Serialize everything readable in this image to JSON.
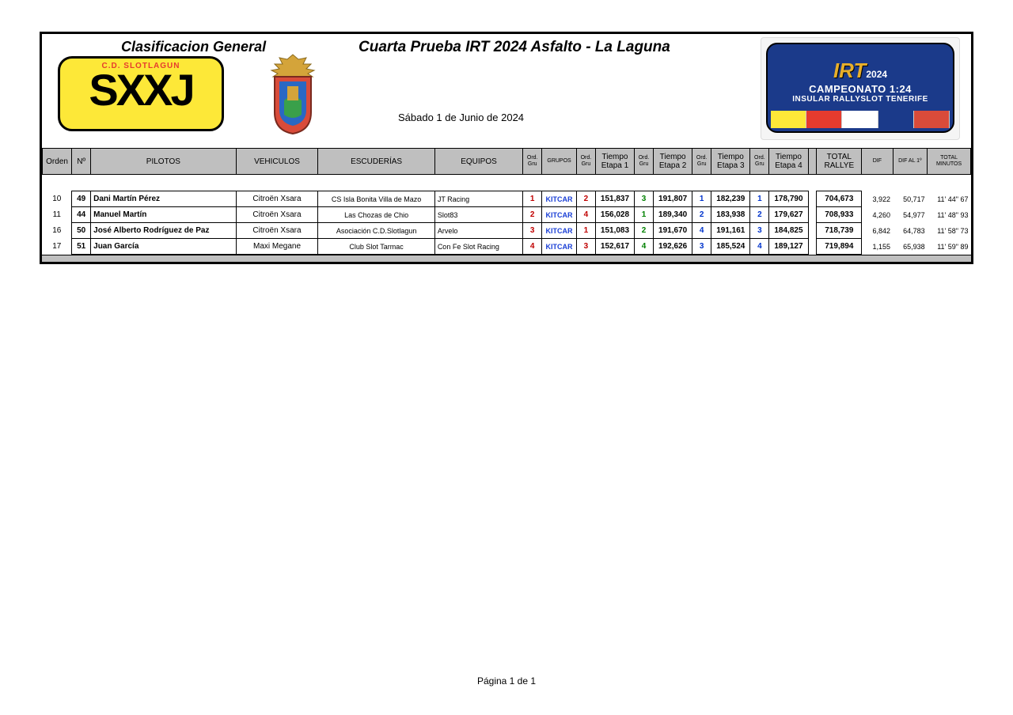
{
  "header": {
    "classification": "Clasificacion  General",
    "event_title": "Cuarta Prueba IRT 2024 Asfalto - La Laguna",
    "date": "Sábado 1 de Junio de 2024",
    "logo_sxxj_top": "C.D. SLOTLAGUN",
    "logo_sxxj_main": "SXXJ",
    "irt_brand": "IRT",
    "irt_year": "2024",
    "irt_line1": "CAMPEONATO 1:24",
    "irt_line2": "INSULAR RALLYSLOT TENERIFE"
  },
  "columns": {
    "orden": "Orden",
    "num": "Nº",
    "pilotos": "PILOTOS",
    "vehiculos": "VEHICULOS",
    "escuderias": "ESCUDERÍAS",
    "equipos": "EQUIPOS",
    "ordgru": "Ord. Gru",
    "grupos": "GRUPOS",
    "ordgru1": "Ord. Gru",
    "t1": "Tiempo Etapa 1",
    "ordgru2": "Ord. Gru",
    "t2": "Tiempo Etapa 2",
    "ordgru3": "Ord. Gru",
    "t3": "Tiempo Etapa 3",
    "ordgru4": "Ord. Gru",
    "t4": "Tiempo Etapa 4",
    "total": "TOTAL RALLYE",
    "dif": "DIF",
    "dif1": "DIF AL  1º",
    "min": "TOTAL MINUTOS"
  },
  "rows": [
    {
      "orden": "10",
      "num": "49",
      "piloto": "Dani Martín Pérez",
      "veh": "Citroën Xsara",
      "esc": "CS Isla Bonita Villa de Mazo",
      "eq": "JT Racing",
      "og": "1",
      "og_color": "red",
      "grupo": "KITCAR",
      "og1": "2",
      "og1c": "red",
      "t1": "151,837",
      "og2": "3",
      "og2c": "green",
      "t2": "191,807",
      "og3": "1",
      "og3c": "blue",
      "t3": "182,239",
      "og4": "1",
      "og4c": "blue",
      "t4": "178,790",
      "total": "704,673",
      "dif": "3,922",
      "dif1": "50,717",
      "min": "11' 44\" 67"
    },
    {
      "orden": "11",
      "num": "44",
      "piloto": "Manuel Martín",
      "veh": "Citroën Xsara",
      "esc": "Las Chozas de Chio",
      "eq": "Slot83",
      "og": "2",
      "og_color": "red",
      "grupo": "KITCAR",
      "og1": "4",
      "og1c": "red",
      "t1": "156,028",
      "og2": "1",
      "og2c": "green",
      "t2": "189,340",
      "og3": "2",
      "og3c": "blue",
      "t3": "183,938",
      "og4": "2",
      "og4c": "blue",
      "t4": "179,627",
      "total": "708,933",
      "dif": "4,260",
      "dif1": "54,977",
      "min": "11' 48\" 93"
    },
    {
      "orden": "16",
      "num": "50",
      "piloto": "José Alberto Rodríguez de Paz",
      "veh": "Citroën Xsara",
      "esc": "Asociación C.D.Slotlagun",
      "eq": "Arvelo",
      "og": "3",
      "og_color": "red",
      "grupo": "KITCAR",
      "og1": "1",
      "og1c": "red",
      "t1": "151,083",
      "og2": "2",
      "og2c": "green",
      "t2": "191,670",
      "og3": "4",
      "og3c": "blue",
      "t3": "191,161",
      "og4": "3",
      "og4c": "blue",
      "t4": "184,825",
      "total": "718,739",
      "dif": "6,842",
      "dif1": "64,783",
      "min": "11' 58\" 73"
    },
    {
      "orden": "17",
      "num": "51",
      "piloto": "Juan García",
      "veh": "Maxi Megane",
      "esc": "Club Slot Tarmac",
      "eq": "Con Fe Slot Racing",
      "og": "4",
      "og_color": "red",
      "grupo": "KITCAR",
      "og1": "3",
      "og1c": "red",
      "t1": "152,617",
      "og2": "4",
      "og2c": "green",
      "t2": "192,626",
      "og3": "3",
      "og3c": "blue",
      "t3": "185,524",
      "og4": "4",
      "og4c": "blue",
      "t4": "189,127",
      "total": "719,894",
      "dif": "1,155",
      "dif1": "65,938",
      "min": "11' 59\" 89"
    }
  ],
  "footer": {
    "page": "Página 1 de 1"
  },
  "colors": {
    "header_bg": "#bfbfbf",
    "border": "#000000",
    "logo_yellow": "#fde838",
    "logo_red": "#e63b2e",
    "irt_blue": "#1b3a8a",
    "irt_gold": "#e8af2a",
    "red": "#c00000",
    "green": "#008000",
    "blue": "#0033cc",
    "link_blue": "#1a3fd6"
  }
}
